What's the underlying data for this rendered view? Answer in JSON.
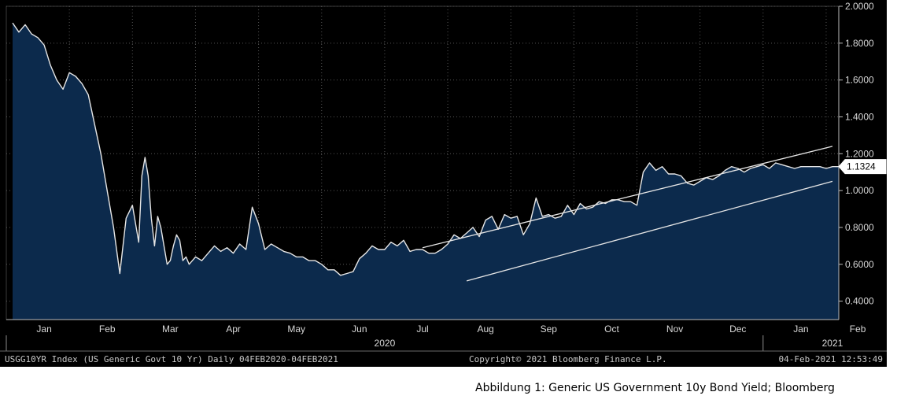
{
  "caption": "Abbildung 1: Generic US Government 10y Bond Yield; Bloomberg",
  "footer": {
    "left": "USGG10YR Index (US Generic Govt 10 Yr)  Daily 04FEB2020-04FEB2021",
    "center": "Copyright© 2021 Bloomberg Finance L.P.",
    "right": "04-Feb-2021 12:53:49"
  },
  "colors": {
    "background": "#000000",
    "area_fill": "#0c2a4c",
    "line": "#e6e6e6",
    "trend": "#e6e6e6",
    "grid": "#555555"
  },
  "chart_data": {
    "type": "area",
    "title": "",
    "xlabel": "",
    "ylabel": "",
    "ylim": [
      0.3,
      2.0
    ],
    "y_ticks": [
      "0.4000",
      "0.6000",
      "0.8000",
      "1.0000",
      "1.2000",
      "1.4000",
      "1.6000",
      "1.8000",
      "2.0000"
    ],
    "y_tick_values": [
      0.4,
      0.6,
      0.8,
      1.0,
      1.2,
      1.4,
      1.6,
      1.8,
      2.0
    ],
    "x_range": [
      0,
      13.2
    ],
    "months": [
      {
        "label": "Jan",
        "pos": 0.6
      },
      {
        "label": "Feb",
        "pos": 1.6
      },
      {
        "label": "Mar",
        "pos": 2.6
      },
      {
        "label": "Apr",
        "pos": 3.6
      },
      {
        "label": "May",
        "pos": 4.6
      },
      {
        "label": "Jun",
        "pos": 5.6
      },
      {
        "label": "Jul",
        "pos": 6.6
      },
      {
        "label": "Aug",
        "pos": 7.6
      },
      {
        "label": "Sep",
        "pos": 8.6
      },
      {
        "label": "Oct",
        "pos": 9.6
      },
      {
        "label": "Nov",
        "pos": 10.6
      },
      {
        "label": "Dec",
        "pos": 11.6
      },
      {
        "label": "Jan",
        "pos": 12.6
      },
      {
        "label": "Feb",
        "pos": 13.5
      }
    ],
    "years": [
      {
        "label": "2020",
        "pos": 6.0
      },
      {
        "label": "2021",
        "pos": 13.1
      }
    ],
    "last_value": "1.1324",
    "series": [
      {
        "x": [
          0.1,
          0.2,
          0.3,
          0.4,
          0.5,
          0.6,
          0.7,
          0.8,
          0.9,
          1.0,
          1.1,
          1.2,
          1.3,
          1.4,
          1.5,
          1.6,
          1.7,
          1.8,
          1.9,
          2.0,
          2.1,
          2.15,
          2.2,
          2.25,
          2.3,
          2.35,
          2.4,
          2.45,
          2.5,
          2.55,
          2.6,
          2.65,
          2.7,
          2.75,
          2.8,
          2.85,
          2.9,
          3.0,
          3.1,
          3.2,
          3.3,
          3.4,
          3.5,
          3.6,
          3.7,
          3.8,
          3.9,
          4.0,
          4.1,
          4.2,
          4.3,
          4.4,
          4.5,
          4.6,
          4.7,
          4.8,
          4.9,
          5.0,
          5.1,
          5.2,
          5.3,
          5.4,
          5.5,
          5.6,
          5.7,
          5.8,
          5.9,
          6.0,
          6.1,
          6.2,
          6.3,
          6.4,
          6.5,
          6.6,
          6.7,
          6.8,
          6.9,
          7.0,
          7.1,
          7.2,
          7.3,
          7.4,
          7.5,
          7.6,
          7.7,
          7.8,
          7.9,
          8.0,
          8.1,
          8.2,
          8.3,
          8.4,
          8.5,
          8.6,
          8.7,
          8.8,
          8.9,
          9.0,
          9.1,
          9.2,
          9.3,
          9.4,
          9.5,
          9.6,
          9.7,
          9.8,
          9.9,
          10.0,
          10.1,
          10.2,
          10.3,
          10.4,
          10.5,
          10.6,
          10.7,
          10.8,
          10.9,
          11.0,
          11.1,
          11.2,
          11.3,
          11.4,
          11.5,
          11.6,
          11.7,
          11.8,
          11.9,
          12.0,
          12.1,
          12.2,
          12.3,
          12.4,
          12.5,
          12.6,
          12.7,
          12.8,
          12.9,
          13.0,
          13.1,
          13.2
        ],
        "y": [
          1.91,
          1.86,
          1.9,
          1.85,
          1.83,
          1.79,
          1.68,
          1.6,
          1.55,
          1.64,
          1.62,
          1.58,
          1.52,
          1.36,
          1.2,
          1.0,
          0.8,
          0.55,
          0.85,
          0.92,
          0.72,
          1.08,
          1.18,
          1.08,
          0.85,
          0.7,
          0.86,
          0.8,
          0.7,
          0.6,
          0.62,
          0.7,
          0.76,
          0.73,
          0.62,
          0.64,
          0.6,
          0.64,
          0.62,
          0.66,
          0.7,
          0.67,
          0.69,
          0.66,
          0.71,
          0.68,
          0.91,
          0.82,
          0.68,
          0.71,
          0.69,
          0.67,
          0.66,
          0.64,
          0.64,
          0.62,
          0.62,
          0.6,
          0.57,
          0.57,
          0.54,
          0.55,
          0.56,
          0.63,
          0.66,
          0.7,
          0.68,
          0.68,
          0.72,
          0.7,
          0.73,
          0.67,
          0.68,
          0.68,
          0.66,
          0.66,
          0.68,
          0.71,
          0.76,
          0.74,
          0.77,
          0.8,
          0.75,
          0.84,
          0.86,
          0.79,
          0.87,
          0.85,
          0.86,
          0.76,
          0.82,
          0.96,
          0.86,
          0.87,
          0.85,
          0.86,
          0.92,
          0.87,
          0.93,
          0.9,
          0.91,
          0.94,
          0.93,
          0.95,
          0.95,
          0.94,
          0.94,
          0.92,
          1.1,
          1.15,
          1.11,
          1.13,
          1.09,
          1.09,
          1.08,
          1.04,
          1.03,
          1.05,
          1.07,
          1.06,
          1.08,
          1.11,
          1.13,
          1.12,
          1.1,
          1.12,
          1.13,
          1.14,
          1.12,
          1.15,
          1.14,
          1.13,
          1.12,
          1.13,
          1.13,
          1.13,
          1.13,
          1.12,
          1.13,
          1.13
        ]
      }
    ],
    "trend_lines": [
      {
        "x": [
          6.6,
          13.1
        ],
        "y": [
          0.69,
          1.24
        ]
      },
      {
        "x": [
          7.3,
          13.1
        ],
        "y": [
          0.51,
          1.05
        ]
      }
    ]
  }
}
